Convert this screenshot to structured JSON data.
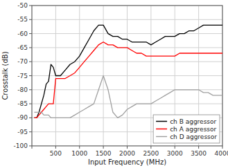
{
  "chart_data": {
    "type": "line",
    "xlabel": "Input Frequency (MHz)",
    "ylabel": "Crosstalk (dB)",
    "x": [
      50,
      100,
      150,
      200,
      250,
      300,
      350,
      400,
      450,
      500,
      600,
      700,
      800,
      900,
      1000,
      1100,
      1200,
      1300,
      1400,
      1500,
      1600,
      1700,
      1800,
      1900,
      2000,
      2100,
      2200,
      2300,
      2400,
      2500,
      2600,
      2700,
      2800,
      2900,
      3000,
      3100,
      3200,
      3300,
      3400,
      3500,
      3600,
      3700,
      3800,
      3900,
      4000
    ],
    "series": [
      {
        "name": "ch B aggressor",
        "color": "#000000",
        "values": [
          -90,
          -90,
          -88,
          -85,
          -82,
          -78,
          -77,
          -71,
          -72,
          -75,
          -75,
          -73,
          -71,
          -70,
          -68,
          -65,
          -62,
          -59,
          -57,
          -57,
          -60,
          -61,
          -61,
          -62,
          -62,
          -63,
          -63,
          -63,
          -63,
          -64,
          -63,
          -62,
          -61,
          -61,
          -61,
          -60,
          -60,
          -59,
          -59,
          -58,
          -57,
          -57,
          -57,
          -57,
          -57
        ]
      },
      {
        "name": "ch A aggressor",
        "color": "#ff0000",
        "values": [
          -90,
          -90,
          -89,
          -88,
          -87,
          -86,
          -85,
          -85,
          -85,
          -76,
          -76,
          -76,
          -75,
          -74,
          -72,
          -70,
          -68,
          -66,
          -64,
          -63,
          -64,
          -64,
          -65,
          -65,
          -65,
          -66,
          -67,
          -67,
          -68,
          -68,
          -68,
          -68,
          -68,
          -68,
          -68,
          -67,
          -67,
          -67,
          -67,
          -67,
          -67,
          -67,
          -67,
          -67,
          -67
        ]
      },
      {
        "name": "ch D aggressor",
        "color": "#a0a0a0",
        "values": [
          -88,
          -88,
          -88,
          -88,
          -89,
          -89,
          -89,
          -90,
          -90,
          -90,
          -90,
          -90,
          -90,
          -89,
          -88,
          -87,
          -86,
          -85,
          -80,
          -75,
          -80,
          -88,
          -90,
          -89,
          -87,
          -86,
          -85,
          -85,
          -85,
          -85,
          -84,
          -83,
          -82,
          -81,
          -80,
          -80,
          -80,
          -80,
          -80,
          -80,
          -81,
          -81,
          -82,
          -82,
          -82
        ]
      }
    ],
    "xlim": [
      0,
      4000
    ],
    "ylim": [
      -100,
      -50
    ],
    "xticks": [
      {
        "value": 0,
        "label": null
      },
      500,
      1000,
      1500,
      2000,
      2500,
      3000,
      3500,
      4000
    ],
    "yticks": [
      -100,
      -95,
      -90,
      -85,
      -80,
      -75,
      -70,
      -65,
      -60,
      -55,
      -50
    ],
    "grid": true,
    "legend": "lower right"
  }
}
